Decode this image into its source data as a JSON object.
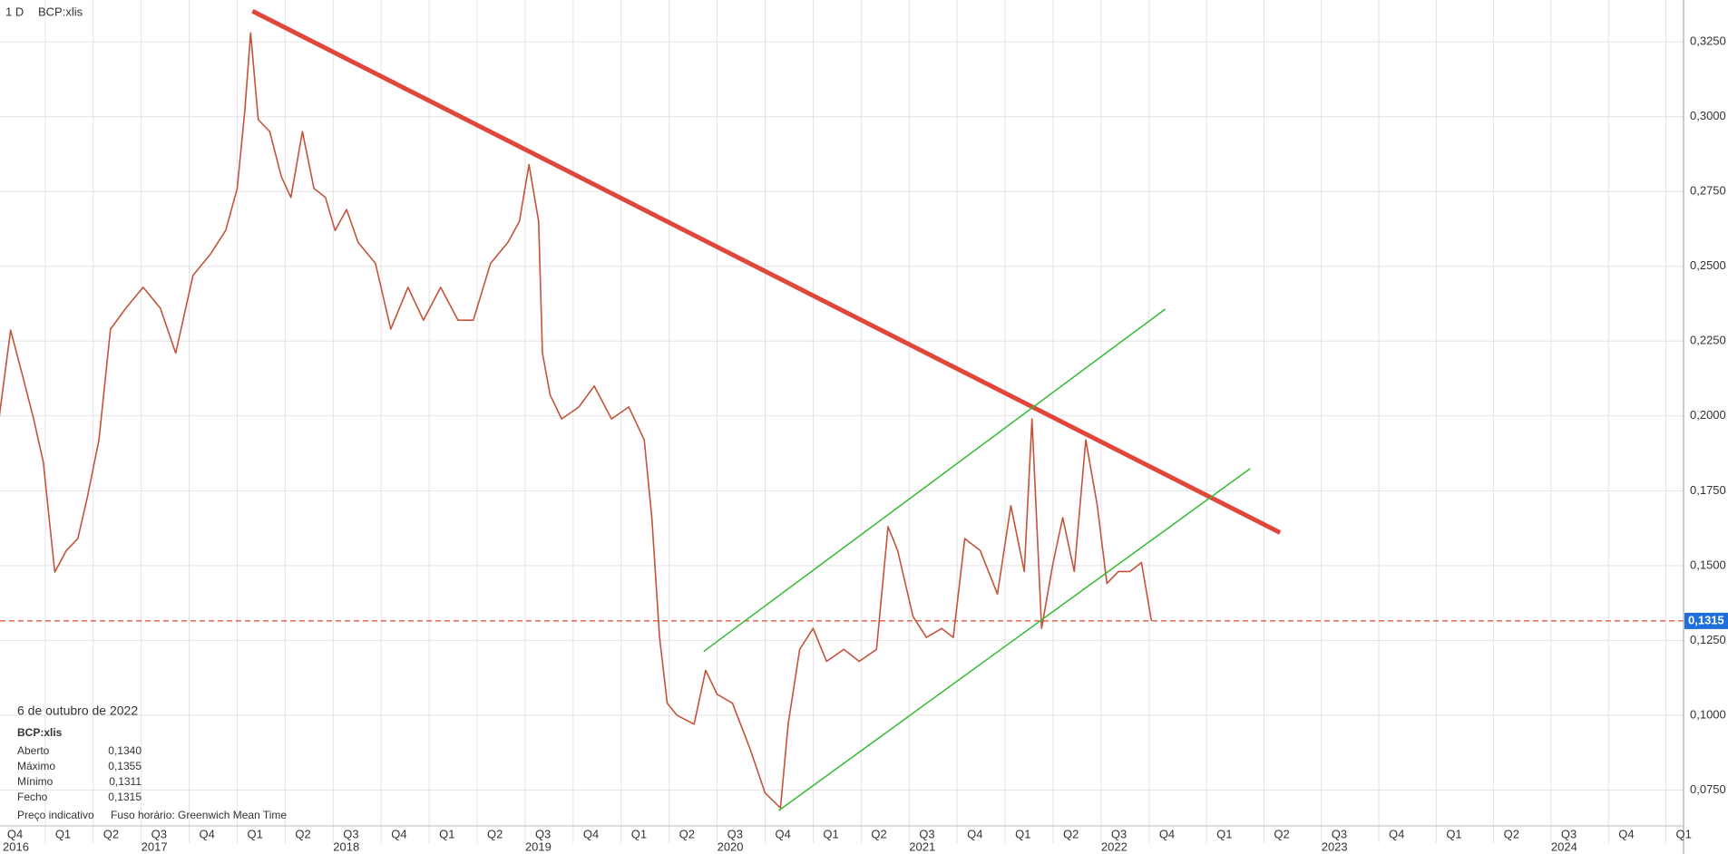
{
  "chart_data": {
    "type": "line",
    "interval": "1 D",
    "symbol": "BCP:xlis",
    "series": [
      {
        "name": "BCP:xlis",
        "color": "#c4533a",
        "x": [
          2016.76,
          2016.82,
          2016.88,
          2016.94,
          2016.99,
          2017.05,
          2017.11,
          2017.17,
          2017.22,
          2017.28,
          2017.34,
          2017.42,
          2017.51,
          2017.6,
          2017.68,
          2017.77,
          2017.86,
          2017.94,
          2018.0,
          2018.04,
          2018.07,
          2018.11,
          2018.17,
          2018.23,
          2018.28,
          2018.34,
          2018.4,
          2018.46,
          2018.51,
          2018.57,
          2018.63,
          2018.72,
          2018.8,
          2018.89,
          2018.97,
          2019.06,
          2019.15,
          2019.23,
          2019.32,
          2019.41,
          2019.47,
          2019.52,
          2019.57,
          2019.59,
          2019.63,
          2019.69,
          2019.78,
          2019.86,
          2019.95,
          2020.04,
          2020.12,
          2020.16,
          2020.2,
          2020.24,
          2020.29,
          2020.38,
          2020.44,
          2020.5,
          2020.58,
          2020.67,
          2020.75,
          2020.83,
          2020.87,
          2020.93,
          2021.0,
          2021.07,
          2021.16,
          2021.24,
          2021.33,
          2021.39,
          2021.44,
          2021.52,
          2021.59,
          2021.67,
          2021.73,
          2021.79,
          2021.87,
          2021.96,
          2022.03,
          2022.1,
          2022.14,
          2022.19,
          2022.25,
          2022.3,
          2022.36,
          2022.42,
          2022.48,
          2022.53,
          2022.59,
          2022.65,
          2022.71,
          2022.76
        ],
        "values": [
          0.1993,
          0.2287,
          0.214,
          0.199,
          0.1846,
          0.1478,
          0.155,
          0.159,
          0.173,
          0.192,
          0.229,
          0.236,
          0.243,
          0.236,
          0.221,
          0.247,
          0.254,
          0.262,
          0.276,
          0.302,
          0.328,
          0.299,
          0.295,
          0.28,
          0.273,
          0.295,
          0.276,
          0.273,
          0.262,
          0.269,
          0.258,
          0.251,
          0.229,
          0.243,
          0.232,
          0.243,
          0.232,
          0.232,
          0.251,
          0.258,
          0.265,
          0.284,
          0.265,
          0.221,
          0.207,
          0.199,
          0.203,
          0.21,
          0.199,
          0.203,
          0.192,
          0.166,
          0.126,
          0.104,
          0.1,
          0.097,
          0.115,
          0.107,
          0.104,
          0.089,
          0.074,
          0.069,
          0.097,
          0.122,
          0.129,
          0.118,
          0.122,
          0.118,
          0.122,
          0.163,
          0.155,
          0.133,
          0.126,
          0.129,
          0.126,
          0.159,
          0.155,
          0.1405,
          0.17,
          0.148,
          0.199,
          0.129,
          0.151,
          0.166,
          0.148,
          0.192,
          0.17,
          0.144,
          0.148,
          0.148,
          0.151,
          0.1315
        ]
      }
    ],
    "trendlines": [
      {
        "color": "#e0473a",
        "width": 5,
        "x": [
          2018.08,
          2023.32
        ],
        "values": [
          0.3353,
          0.161
        ]
      },
      {
        "color": "#33bb33",
        "width": 1.5,
        "x": [
          2020.43,
          2022.82
        ],
        "values": [
          0.1213,
          0.2357
        ]
      },
      {
        "color": "#33bb33",
        "width": 1.5,
        "x": [
          2020.82,
          2023.19
        ],
        "values": [
          0.0681,
          0.1824
        ]
      }
    ],
    "last_price": {
      "value": 0.1315,
      "label": "0,1315",
      "color": "#e0473a",
      "label_color": "#1e6fd9"
    },
    "ylim": [
      0.063,
      0.339
    ],
    "yticks": [
      {
        "value": 0.075,
        "label": "0,0750"
      },
      {
        "value": 0.1,
        "label": "0,1000"
      },
      {
        "value": 0.125,
        "label": "0,1250"
      },
      {
        "value": 0.15,
        "label": "0,1500"
      },
      {
        "value": 0.175,
        "label": "0,1750"
      },
      {
        "value": 0.2,
        "label": "0,2000"
      },
      {
        "value": 0.225,
        "label": "0,2250"
      },
      {
        "value": 0.25,
        "label": "0,2500"
      },
      {
        "value": 0.275,
        "label": "0,2750"
      },
      {
        "value": 0.3,
        "label": "0,3000"
      },
      {
        "value": 0.325,
        "label": "0,3250"
      }
    ],
    "xlim": [
      2016.75,
      2025.0
    ],
    "xticks": [
      {
        "value": 2016.75,
        "label": "Q4"
      },
      {
        "value": 2017,
        "label": "Q1"
      },
      {
        "value": 2017.25,
        "label": "Q2"
      },
      {
        "value": 2017.5,
        "label": "Q3"
      },
      {
        "value": 2017.75,
        "label": "Q4"
      },
      {
        "value": 2018,
        "label": "Q1"
      },
      {
        "value": 2018.25,
        "label": "Q2"
      },
      {
        "value": 2018.5,
        "label": "Q3"
      },
      {
        "value": 2018.75,
        "label": "Q4"
      },
      {
        "value": 2019,
        "label": "Q1"
      },
      {
        "value": 2019.25,
        "label": "Q2"
      },
      {
        "value": 2019.5,
        "label": "Q3"
      },
      {
        "value": 2019.75,
        "label": "Q4"
      },
      {
        "value": 2020,
        "label": "Q1"
      },
      {
        "value": 2020.25,
        "label": "Q2"
      },
      {
        "value": 2020.5,
        "label": "Q3"
      },
      {
        "value": 2020.75,
        "label": "Q4"
      },
      {
        "value": 2021,
        "label": "Q1"
      },
      {
        "value": 2021.25,
        "label": "Q2"
      },
      {
        "value": 2021.5,
        "label": "Q3"
      },
      {
        "value": 2021.75,
        "label": "Q4"
      },
      {
        "value": 2022,
        "label": "Q1"
      },
      {
        "value": 2022.25,
        "label": "Q2"
      },
      {
        "value": 2022.5,
        "label": "Q3"
      },
      {
        "value": 2022.75,
        "label": "Q4"
      },
      {
        "value": 2023,
        "label": "Q1"
      },
      {
        "value": 2023.25,
        "label": "Q2"
      },
      {
        "value": 2023.5,
        "label": "Q3"
      },
      {
        "value": 2023.75,
        "label": "Q4"
      },
      {
        "value": 2024,
        "label": "Q1"
      },
      {
        "value": 2024.25,
        "label": "Q2"
      },
      {
        "value": 2024.5,
        "label": "Q3"
      },
      {
        "value": 2024.75,
        "label": "Q4"
      },
      {
        "value": 2025,
        "label": "Q1"
      }
    ],
    "year_ticks": [
      2016,
      2017,
      2018,
      2019,
      2020,
      2021,
      2022,
      2023,
      2024
    ],
    "grid": true
  },
  "info_panel": {
    "date": "6 de outubro de 2022",
    "symbol": "BCP:xlis",
    "rows": [
      [
        "Aberto",
        "0,1340"
      ],
      [
        "Máximo",
        "0,1355"
      ],
      [
        "Mínimo",
        "0,1311"
      ],
      [
        "Fecho",
        "0,1315"
      ]
    ],
    "footer": [
      "Preço indicativo",
      "Fuso horário: Greenwich Mean Time"
    ]
  }
}
